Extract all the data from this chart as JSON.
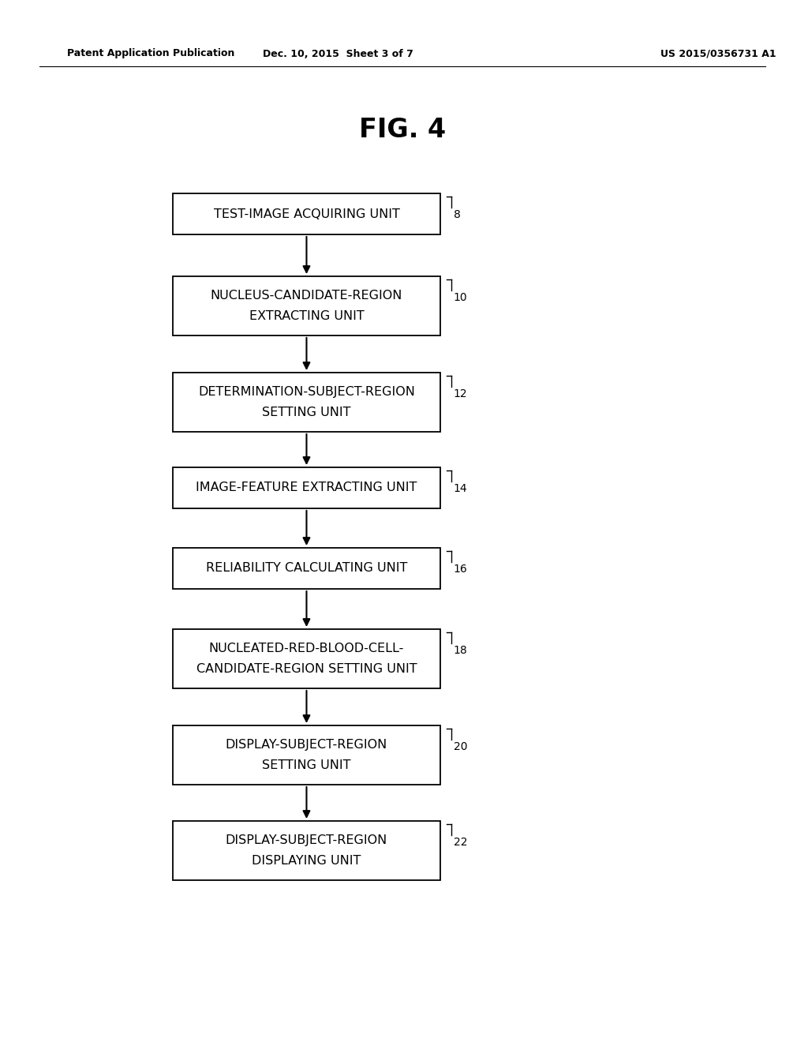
{
  "title": "FIG. 4",
  "header_left": "Patent Application Publication",
  "header_center": "Dec. 10, 2015  Sheet 3 of 7",
  "header_right": "US 2015/0356731 A1",
  "background_color": "#ffffff",
  "boxes": [
    {
      "lines": [
        "TEST-IMAGE ACQUIRING UNIT"
      ],
      "tag": "8",
      "double": false
    },
    {
      "lines": [
        "NUCLEUS-CANDIDATE-REGION",
        "EXTRACTING UNIT"
      ],
      "tag": "10",
      "double": true
    },
    {
      "lines": [
        "DETERMINATION-SUBJECT-REGION",
        "SETTING UNIT"
      ],
      "tag": "12",
      "double": true
    },
    {
      "lines": [
        "IMAGE-FEATURE EXTRACTING UNIT"
      ],
      "tag": "14",
      "double": false
    },
    {
      "lines": [
        "RELIABILITY CALCULATING UNIT"
      ],
      "tag": "16",
      "double": false
    },
    {
      "lines": [
        "NUCLEATED-RED-BLOOD-CELL-",
        "CANDIDATE-REGION SETTING UNIT"
      ],
      "tag": "18",
      "double": true
    },
    {
      "lines": [
        "DISPLAY-SUBJECT-REGION",
        "SETTING UNIT"
      ],
      "tag": "20",
      "double": true
    },
    {
      "lines": [
        "DISPLAY-SUBJECT-REGION",
        "DISPLAYING UNIT"
      ],
      "tag": "22",
      "double": true
    }
  ],
  "box_color": "#ffffff",
  "box_edge_color": "#000000",
  "arrow_color": "#000000",
  "text_color": "#000000",
  "font_size": 11.5,
  "title_font_size": 24,
  "header_font_size": 9
}
